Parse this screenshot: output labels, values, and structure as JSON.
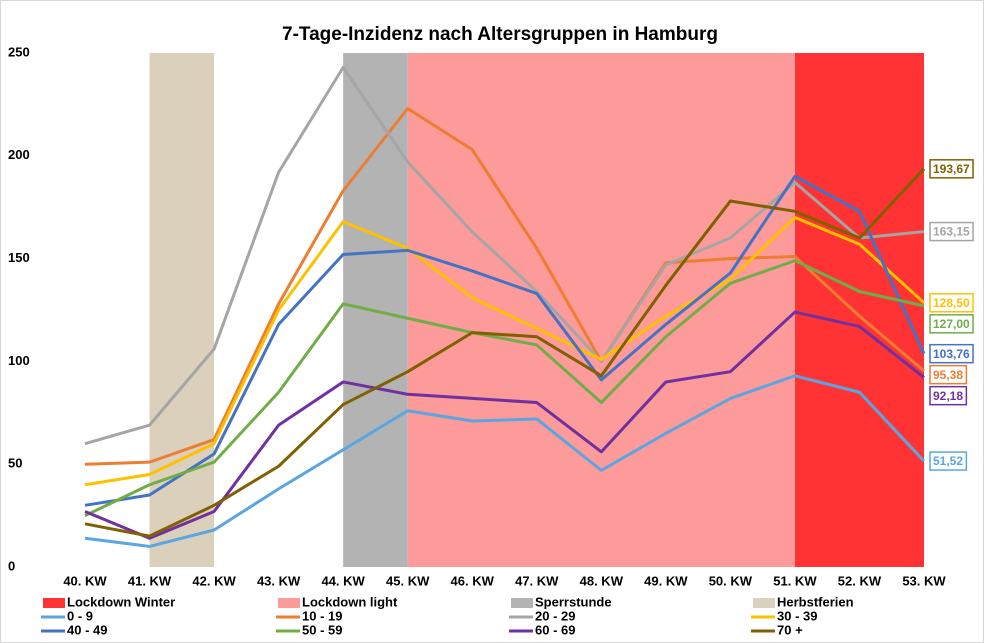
{
  "chart_data": {
    "type": "line",
    "title": "7-Tage-Inzidenz nach Altersgruppen in Hamburg",
    "categories": [
      "40. KW",
      "41. KW",
      "42. KW",
      "43. KW",
      "44. KW",
      "45. KW",
      "46. KW",
      "47. KW",
      "48. KW",
      "49. KW",
      "50. KW",
      "51. KW",
      "52. KW",
      "53. KW"
    ],
    "ylim": [
      0,
      250
    ],
    "yticks": [
      0,
      50,
      100,
      150,
      200,
      250
    ],
    "grid": false,
    "bands": [
      {
        "name": "Lockdown Winter",
        "color": "#ff3333",
        "start": "51. KW",
        "end": "53. KW"
      },
      {
        "name": "Lockdown light",
        "color": "#fd9a9a",
        "start": "45. KW",
        "end": "51. KW"
      },
      {
        "name": "Sperrstunde",
        "color": "#b3b3b3",
        "start": "44. KW",
        "end": "45. KW"
      },
      {
        "name": "Herbstferien",
        "color": "#dbd0bc",
        "start": "41. KW",
        "end": "42. KW"
      }
    ],
    "series": [
      {
        "name": "0 - 9",
        "color": "#5ba6e0",
        "values": [
          14,
          10,
          18,
          38,
          57,
          76,
          71,
          72,
          47,
          65,
          82,
          93,
          85,
          51.52
        ],
        "value_labels": [
          null,
          null,
          null,
          null,
          null,
          null,
          null,
          null,
          null,
          null,
          null,
          null,
          null,
          "51,52"
        ]
      },
      {
        "name": "10 - 19",
        "color": "#ed7d31",
        "values": [
          50,
          51,
          62,
          128,
          183,
          223,
          203,
          155,
          100,
          148,
          150,
          151,
          122,
          95.38
        ],
        "value_labels": [
          null,
          null,
          null,
          null,
          null,
          null,
          null,
          null,
          null,
          null,
          null,
          null,
          null,
          "95,38"
        ]
      },
      {
        "name": "20 - 29",
        "color": "#a5a5a5",
        "values": [
          60,
          69,
          106,
          192,
          243,
          197,
          163,
          134,
          100,
          147,
          160,
          187,
          160,
          163.15
        ],
        "value_labels": [
          null,
          null,
          null,
          null,
          null,
          null,
          null,
          null,
          null,
          null,
          null,
          null,
          null,
          "163,15"
        ]
      },
      {
        "name": "30 - 39",
        "color": "#ffc000",
        "values": [
          40,
          45,
          60,
          125,
          168,
          155,
          131,
          116,
          101,
          122,
          140,
          170,
          157,
          128.5
        ],
        "value_labels": [
          null,
          null,
          null,
          null,
          null,
          null,
          null,
          null,
          null,
          null,
          null,
          null,
          null,
          "128,50"
        ]
      },
      {
        "name": "40 - 49",
        "color": "#4472c4",
        "values": [
          30,
          35,
          55,
          118,
          152,
          154,
          144,
          133,
          91,
          118,
          143,
          190,
          173,
          103.76
        ],
        "value_labels": [
          null,
          null,
          null,
          null,
          null,
          null,
          null,
          null,
          null,
          null,
          null,
          null,
          null,
          "103,76"
        ]
      },
      {
        "name": "50 - 59",
        "color": "#70ad47",
        "values": [
          25,
          40,
          51,
          85,
          128,
          121,
          114,
          108,
          80,
          112,
          138,
          149,
          134,
          127
        ],
        "value_labels": [
          null,
          null,
          null,
          null,
          null,
          null,
          null,
          null,
          null,
          null,
          null,
          null,
          null,
          "127,00"
        ]
      },
      {
        "name": "60 - 69",
        "color": "#7030a0",
        "values": [
          27,
          14,
          27,
          69,
          90,
          84,
          82,
          80,
          56,
          90,
          95,
          124,
          117,
          92.18
        ],
        "value_labels": [
          null,
          null,
          null,
          null,
          null,
          null,
          null,
          null,
          null,
          null,
          null,
          null,
          null,
          "92,18"
        ]
      },
      {
        "name": "70 +",
        "color": "#806000",
        "values": [
          21,
          15,
          30,
          49,
          79,
          95,
          114,
          112,
          93,
          137,
          178,
          173,
          160,
          193.67
        ],
        "value_labels": [
          null,
          null,
          null,
          null,
          null,
          null,
          null,
          null,
          null,
          null,
          null,
          null,
          null,
          "193,67"
        ]
      }
    ]
  }
}
